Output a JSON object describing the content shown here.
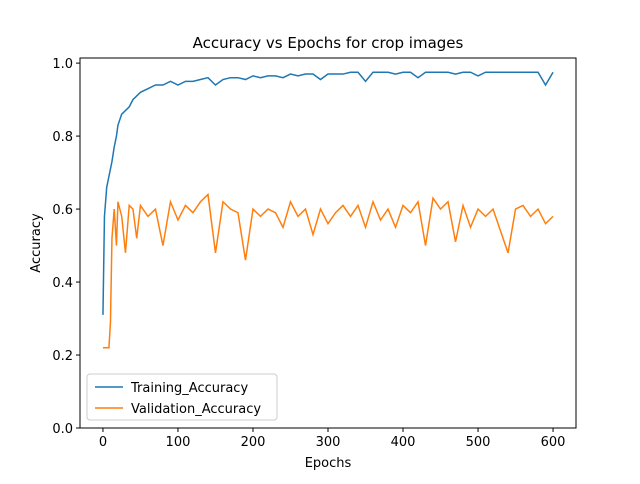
{
  "chart_data": {
    "type": "line",
    "title": "Accuracy vs Epochs for crop images",
    "xlabel": "Epochs",
    "ylabel": "Accuracy",
    "x": [
      0,
      2,
      5,
      8,
      10,
      12,
      15,
      18,
      20,
      25,
      30,
      35,
      40,
      45,
      50,
      60,
      70,
      80,
      90,
      100,
      110,
      120,
      130,
      140,
      150,
      160,
      170,
      180,
      190,
      200,
      210,
      220,
      230,
      240,
      250,
      260,
      270,
      280,
      290,
      300,
      310,
      320,
      330,
      340,
      350,
      360,
      370,
      380,
      390,
      400,
      410,
      420,
      430,
      440,
      450,
      460,
      470,
      480,
      490,
      500,
      510,
      520,
      530,
      540,
      550,
      560,
      570,
      580,
      590,
      600
    ],
    "series": [
      {
        "name": "Training_Accuracy",
        "color": "#1f77b4",
        "values": [
          0.31,
          0.58,
          0.66,
          0.69,
          0.71,
          0.73,
          0.77,
          0.8,
          0.83,
          0.86,
          0.87,
          0.88,
          0.9,
          0.91,
          0.92,
          0.93,
          0.94,
          0.94,
          0.95,
          0.94,
          0.95,
          0.95,
          0.955,
          0.96,
          0.94,
          0.955,
          0.96,
          0.96,
          0.955,
          0.965,
          0.96,
          0.965,
          0.965,
          0.96,
          0.97,
          0.965,
          0.97,
          0.97,
          0.955,
          0.97,
          0.97,
          0.97,
          0.975,
          0.975,
          0.95,
          0.975,
          0.975,
          0.975,
          0.97,
          0.975,
          0.975,
          0.96,
          0.975,
          0.975,
          0.975,
          0.975,
          0.97,
          0.975,
          0.975,
          0.965,
          0.975,
          0.975,
          0.975,
          0.975,
          0.975,
          0.975,
          0.975,
          0.975,
          0.94,
          0.975
        ]
      },
      {
        "name": "Validation_Accuracy",
        "color": "#ff7f0e",
        "values": [
          0.22,
          0.22,
          0.22,
          0.22,
          0.29,
          0.52,
          0.6,
          0.5,
          0.62,
          0.58,
          0.48,
          0.61,
          0.6,
          0.52,
          0.61,
          0.58,
          0.6,
          0.5,
          0.62,
          0.57,
          0.61,
          0.59,
          0.62,
          0.64,
          0.48,
          0.62,
          0.6,
          0.59,
          0.46,
          0.6,
          0.58,
          0.6,
          0.59,
          0.55,
          0.62,
          0.58,
          0.6,
          0.53,
          0.6,
          0.56,
          0.59,
          0.61,
          0.58,
          0.61,
          0.55,
          0.62,
          0.57,
          0.6,
          0.55,
          0.61,
          0.59,
          0.62,
          0.5,
          0.63,
          0.6,
          0.62,
          0.51,
          0.61,
          0.55,
          0.6,
          0.58,
          0.6,
          0.54,
          0.48,
          0.6,
          0.61,
          0.58,
          0.6,
          0.56,
          0.58
        ]
      }
    ],
    "xlim": [
      -30.6,
      630.6
    ],
    "ylim": [
      0,
      1.014
    ],
    "xticks": [
      0,
      100,
      200,
      300,
      400,
      500,
      600
    ],
    "yticks": [
      {
        "value": 0,
        "label": "0.0"
      },
      {
        "value": 0.2,
        "label": "0.2"
      },
      {
        "value": 0.4,
        "label": "0.4"
      },
      {
        "value": 0.6,
        "label": "0.6"
      },
      {
        "value": 0.8,
        "label": "0.8"
      },
      {
        "value": 1,
        "label": "1.0"
      }
    ],
    "legend": "lower left"
  }
}
